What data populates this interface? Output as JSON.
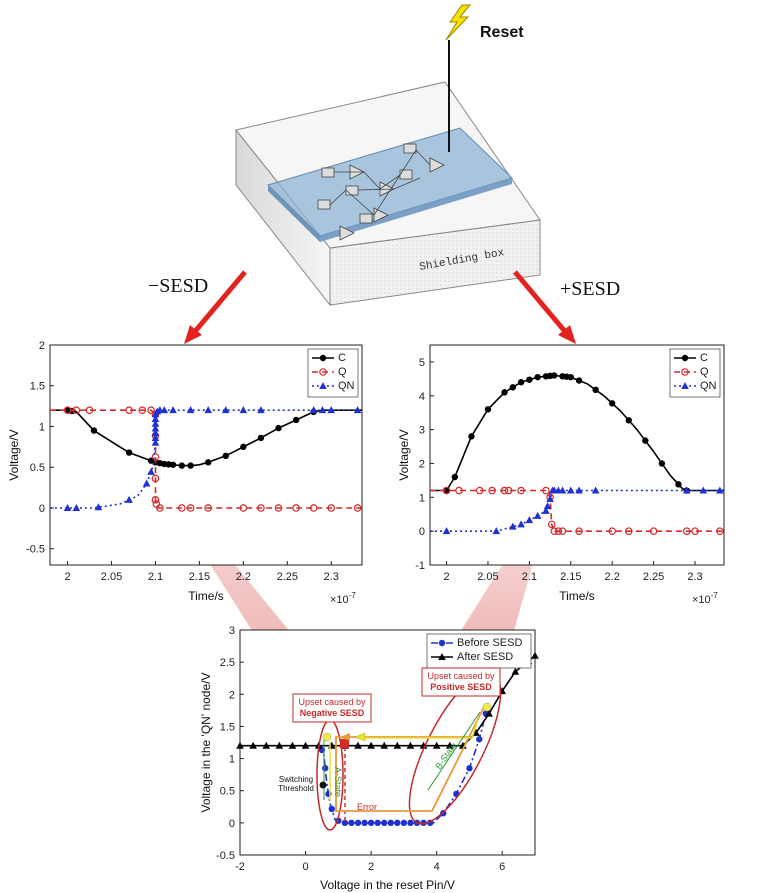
{
  "top": {
    "reset_label": "Reset",
    "box_label": "Shielding box",
    "arrow_left_label": "−SESD",
    "arrow_right_label": "+SESD"
  },
  "chart_data": [
    {
      "id": "neg",
      "type": "line",
      "title": "",
      "xlabel": "Time/s",
      "ylabel": "Voltage/V",
      "x_multiplier": "×10",
      "x_exponent": "-7",
      "xlim": [
        1.98,
        2.335
      ],
      "ylim": [
        -0.7,
        2.0
      ],
      "xticks": [
        2.0,
        2.05,
        2.1,
        2.15,
        2.2,
        2.25,
        2.3
      ],
      "xtick_labels": [
        "2",
        "2.05",
        "2.1",
        "2.15",
        "2.2",
        "2.25",
        "2.3"
      ],
      "yticks": [
        -0.5,
        0,
        0.5,
        1,
        1.5,
        2
      ],
      "ytick_labels": [
        "-0.5",
        "0",
        "0.5",
        "1",
        "1.5",
        "2"
      ],
      "legend_position": "top-right",
      "series": [
        {
          "name": "C",
          "color": "#000000",
          "dash": "",
          "marker": "dot",
          "points": [
            [
              1.98,
              1.2
            ],
            [
              2.0,
              1.2
            ],
            [
              2.01,
              1.18
            ],
            [
              2.03,
              0.95
            ],
            [
              2.055,
              0.78
            ],
            [
              2.07,
              0.68
            ],
            [
              2.09,
              0.6
            ],
            [
              2.1,
              0.56
            ],
            [
              2.11,
              0.54
            ],
            [
              2.12,
              0.53
            ],
            [
              2.13,
              0.52
            ],
            [
              2.14,
              0.52
            ],
            [
              2.15,
              0.53
            ],
            [
              2.16,
              0.56
            ],
            [
              2.18,
              0.64
            ],
            [
              2.2,
              0.75
            ],
            [
              2.22,
              0.86
            ],
            [
              2.24,
              0.98
            ],
            [
              2.26,
              1.08
            ],
            [
              2.28,
              1.18
            ],
            [
              2.29,
              1.2
            ],
            [
              2.335,
              1.2
            ]
          ],
          "markers": [
            2.0,
            2.005,
            2.03,
            2.07,
            2.095,
            2.1,
            2.105,
            2.11,
            2.115,
            2.12,
            2.13,
            2.14,
            2.16,
            2.18,
            2.2,
            2.22,
            2.24,
            2.26,
            2.28
          ]
        },
        {
          "name": "Q",
          "color": "#d42a2a",
          "dash": "6,4",
          "marker": "circle",
          "points": [
            [
              1.98,
              1.2
            ],
            [
              2.095,
              1.2
            ],
            [
              2.1,
              1.15
            ],
            [
              2.1,
              0.1
            ],
            [
              2.102,
              0.0
            ],
            [
              2.335,
              0.0
            ]
          ],
          "markers": [
            2.0,
            2.01,
            2.025,
            2.07,
            2.085,
            2.095,
            2.1,
            2.1,
            2.1,
            2.1,
            2.1,
            2.101,
            2.105,
            2.13,
            2.14,
            2.16,
            2.2,
            2.22,
            2.24,
            2.26,
            2.28,
            2.3,
            2.33
          ]
        },
        {
          "name": "QN",
          "color": "#1e32d0",
          "dash": "2,3",
          "marker": "triangle",
          "points": [
            [
              1.98,
              0.0
            ],
            [
              2.03,
              0.0
            ],
            [
              2.06,
              0.05
            ],
            [
              2.08,
              0.15
            ],
            [
              2.09,
              0.3
            ],
            [
              2.097,
              0.5
            ],
            [
              2.1,
              0.8
            ],
            [
              2.1,
              1.15
            ],
            [
              2.103,
              1.2
            ],
            [
              2.335,
              1.2
            ]
          ],
          "markers": [
            2.0,
            2.01,
            2.035,
            2.07,
            2.09,
            2.095,
            2.1,
            2.1,
            2.1,
            2.1,
            2.1,
            2.1,
            2.1,
            2.102,
            2.105,
            2.11,
            2.12,
            2.14,
            2.16,
            2.18,
            2.2,
            2.22,
            2.28,
            2.29,
            2.3,
            2.33
          ]
        }
      ]
    },
    {
      "id": "pos",
      "type": "line",
      "title": "",
      "xlabel": "Time/s",
      "ylabel": "Voltage/V",
      "x_multiplier": "×10",
      "x_exponent": "-7",
      "xlim": [
        1.98,
        2.335
      ],
      "ylim": [
        -1.0,
        5.5
      ],
      "xticks": [
        2.0,
        2.05,
        2.1,
        2.15,
        2.2,
        2.25,
        2.3
      ],
      "xtick_labels": [
        "2",
        "2.05",
        "2.1",
        "2.15",
        "2.2",
        "2.25",
        "2.3"
      ],
      "yticks": [
        -1,
        0,
        1,
        2,
        3,
        4,
        5
      ],
      "ytick_labels": [
        "-1",
        "0",
        "1",
        "2",
        "3",
        "4",
        "5"
      ],
      "legend_position": "top-right",
      "series": [
        {
          "name": "C",
          "color": "#000000",
          "dash": "",
          "marker": "dot",
          "points": [
            [
              1.98,
              1.2
            ],
            [
              2.0,
              1.2
            ],
            [
              2.01,
              1.6
            ],
            [
              2.03,
              2.8
            ],
            [
              2.05,
              3.6
            ],
            [
              2.07,
              4.1
            ],
            [
              2.09,
              4.4
            ],
            [
              2.11,
              4.55
            ],
            [
              2.13,
              4.6
            ],
            [
              2.15,
              4.55
            ],
            [
              2.17,
              4.35
            ],
            [
              2.19,
              4.0
            ],
            [
              2.21,
              3.55
            ],
            [
              2.23,
              3.0
            ],
            [
              2.25,
              2.35
            ],
            [
              2.27,
              1.65
            ],
            [
              2.285,
              1.25
            ],
            [
              2.29,
              1.2
            ],
            [
              2.335,
              1.2
            ]
          ],
          "markers": [
            2.0,
            2.01,
            2.03,
            2.05,
            2.07,
            2.08,
            2.09,
            2.1,
            2.11,
            2.12,
            2.125,
            2.13,
            2.14,
            2.145,
            2.15,
            2.16,
            2.18,
            2.2,
            2.22,
            2.24,
            2.26,
            2.28,
            2.29
          ]
        },
        {
          "name": "Q",
          "color": "#d42a2a",
          "dash": "6,4",
          "marker": "circle",
          "points": [
            [
              1.98,
              1.2
            ],
            [
              2.12,
              1.2
            ],
            [
              2.125,
              1.0
            ],
            [
              2.127,
              0.2
            ],
            [
              2.13,
              0.0
            ],
            [
              2.335,
              0.0
            ]
          ],
          "markers": [
            2.0,
            2.015,
            2.04,
            2.055,
            2.07,
            2.075,
            2.09,
            2.12,
            2.125,
            2.127,
            2.13,
            2.135,
            2.14,
            2.16,
            2.2,
            2.22,
            2.25,
            2.29,
            2.3,
            2.33
          ]
        },
        {
          "name": "QN",
          "color": "#1e32d0",
          "dash": "2,3",
          "marker": "triangle",
          "points": [
            [
              1.98,
              0.0
            ],
            [
              2.06,
              0.0
            ],
            [
              2.09,
              0.2
            ],
            [
              2.11,
              0.45
            ],
            [
              2.12,
              0.6
            ],
            [
              2.125,
              0.95
            ],
            [
              2.128,
              1.2
            ],
            [
              2.335,
              1.2
            ]
          ],
          "markers": [
            2.0,
            2.06,
            2.08,
            2.09,
            2.1,
            2.11,
            2.12,
            2.122,
            2.125,
            2.128,
            2.13,
            2.135,
            2.14,
            2.15,
            2.16,
            2.18,
            2.29,
            2.31,
            2.33
          ]
        }
      ]
    },
    {
      "id": "bot",
      "type": "line",
      "title": "",
      "xlabel": "Voltage in the reset Pin/V",
      "ylabel": "Voltage in the 'QN' node/V",
      "xlim": [
        -2.0,
        7.0
      ],
      "ylim": [
        -0.5,
        3.0
      ],
      "xticks": [
        -2,
        0,
        2,
        4,
        6
      ],
      "xtick_labels": [
        "-2",
        "0",
        "2",
        "4",
        "6"
      ],
      "yticks": [
        -0.5,
        0,
        0.5,
        1,
        1.5,
        2,
        2.5,
        3
      ],
      "ytick_labels": [
        "-0.5",
        "0",
        "0.5",
        "1",
        "1.5",
        "2",
        "2.5",
        "3"
      ],
      "legend_position": "top-right",
      "series": [
        {
          "name": "Before SESD",
          "color": "#1e32d0",
          "dash": "7,3,2,3",
          "marker": "dot",
          "points": [
            [
              0.4,
              1.2
            ],
            [
              0.55,
              1.1
            ],
            [
              0.65,
              0.6
            ],
            [
              0.75,
              0.3
            ],
            [
              0.9,
              0.05
            ],
            [
              1.2,
              0.0
            ],
            [
              3.9,
              0.0
            ],
            [
              4.2,
              0.15
            ],
            [
              4.6,
              0.45
            ],
            [
              5.0,
              0.85
            ],
            [
              5.3,
              1.3
            ],
            [
              5.5,
              1.7
            ]
          ],
          "markers": [
            0.5,
            0.6,
            0.7,
            0.8,
            1.0,
            1.2,
            1.4,
            1.6,
            1.8,
            2.0,
            2.2,
            2.4,
            2.6,
            2.8,
            3.0,
            3.2,
            3.4,
            3.6,
            3.8,
            4.2,
            4.6,
            5.0,
            5.3,
            5.5
          ]
        },
        {
          "name": "After SESD",
          "color": "#000000",
          "dash": "",
          "marker": "triangle",
          "points": [
            [
              -2.0,
              1.2
            ],
            [
              4.8,
              1.2
            ],
            [
              5.2,
              1.4
            ],
            [
              5.6,
              1.7
            ],
            [
              6.0,
              2.05
            ],
            [
              6.4,
              2.35
            ],
            [
              7.0,
              2.6
            ]
          ],
          "markers": [
            -2.0,
            -1.6,
            -1.2,
            -0.8,
            -0.4,
            0.0,
            0.4,
            0.8,
            1.2,
            1.6,
            2.0,
            2.4,
            2.8,
            3.2,
            3.6,
            4.0,
            4.4,
            4.8,
            5.2,
            5.6,
            6.0,
            6.4,
            6.8,
            7.0
          ]
        }
      ]
    }
  ],
  "annotations": {
    "neg_box": "Upset caused by\nNegative SESD",
    "pos_box": "Upset caused by\nPositive SESD",
    "switching": "Switching\nThreshold",
    "error": "Error",
    "a_state": "A-State",
    "b_state": "B-State"
  },
  "colors": {
    "red_arrow": "#e3231d",
    "blue": "#1e32d0",
    "red": "#d42a2a",
    "orange": "#e89a3a",
    "yellow": "#e8e230",
    "green": "#2a9a3a"
  }
}
